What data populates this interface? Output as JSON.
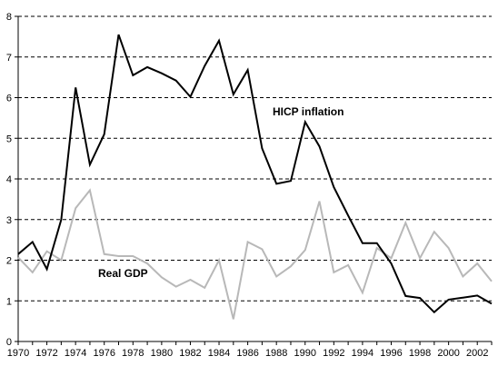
{
  "chart_data": {
    "type": "line",
    "title": "",
    "xlabel": "",
    "ylabel": "",
    "xlim": [
      1970,
      2003
    ],
    "ylim": [
      0,
      8
    ],
    "y_ticks": [
      0,
      1,
      2,
      3,
      4,
      5,
      6,
      7,
      8
    ],
    "x_ticks": [
      1970,
      1972,
      1974,
      1976,
      1978,
      1980,
      1982,
      1984,
      1986,
      1988,
      1990,
      1992,
      1994,
      1996,
      1998,
      2000,
      2002
    ],
    "grid": "horizontal dashed",
    "x": [
      1970,
      1971,
      1972,
      1973,
      1974,
      1975,
      1976,
      1977,
      1978,
      1979,
      1980,
      1981,
      1982,
      1983,
      1984,
      1985,
      1986,
      1987,
      1988,
      1989,
      1990,
      1991,
      1992,
      1993,
      1994,
      1995,
      1996,
      1997,
      1998,
      1999,
      2000,
      2001,
      2002,
      2003
    ],
    "series": [
      {
        "name": "HICP inflation",
        "color": "#000000",
        "values": [
          2.15,
          2.45,
          1.78,
          3.0,
          6.25,
          4.35,
          5.1,
          7.55,
          6.55,
          6.75,
          6.6,
          6.42,
          6.02,
          6.78,
          7.4,
          6.08,
          6.68,
          4.75,
          3.88,
          3.95,
          5.4,
          4.8,
          3.8,
          3.1,
          2.42,
          2.42,
          1.92,
          1.12,
          1.07,
          0.72,
          1.03,
          1.08,
          1.13,
          0.93
        ]
      },
      {
        "name": "Real GDP",
        "color": "#b8b8b8",
        "values": [
          2.07,
          1.7,
          2.22,
          2.0,
          3.28,
          3.72,
          2.15,
          2.1,
          2.1,
          1.92,
          1.58,
          1.35,
          1.52,
          1.32,
          2.0,
          0.55,
          2.45,
          2.27,
          1.6,
          1.85,
          2.25,
          3.45,
          1.7,
          1.88,
          1.2,
          2.3,
          2.05,
          2.92,
          2.05,
          2.7,
          2.3,
          1.6,
          1.92,
          1.48
        ]
      }
    ]
  }
}
